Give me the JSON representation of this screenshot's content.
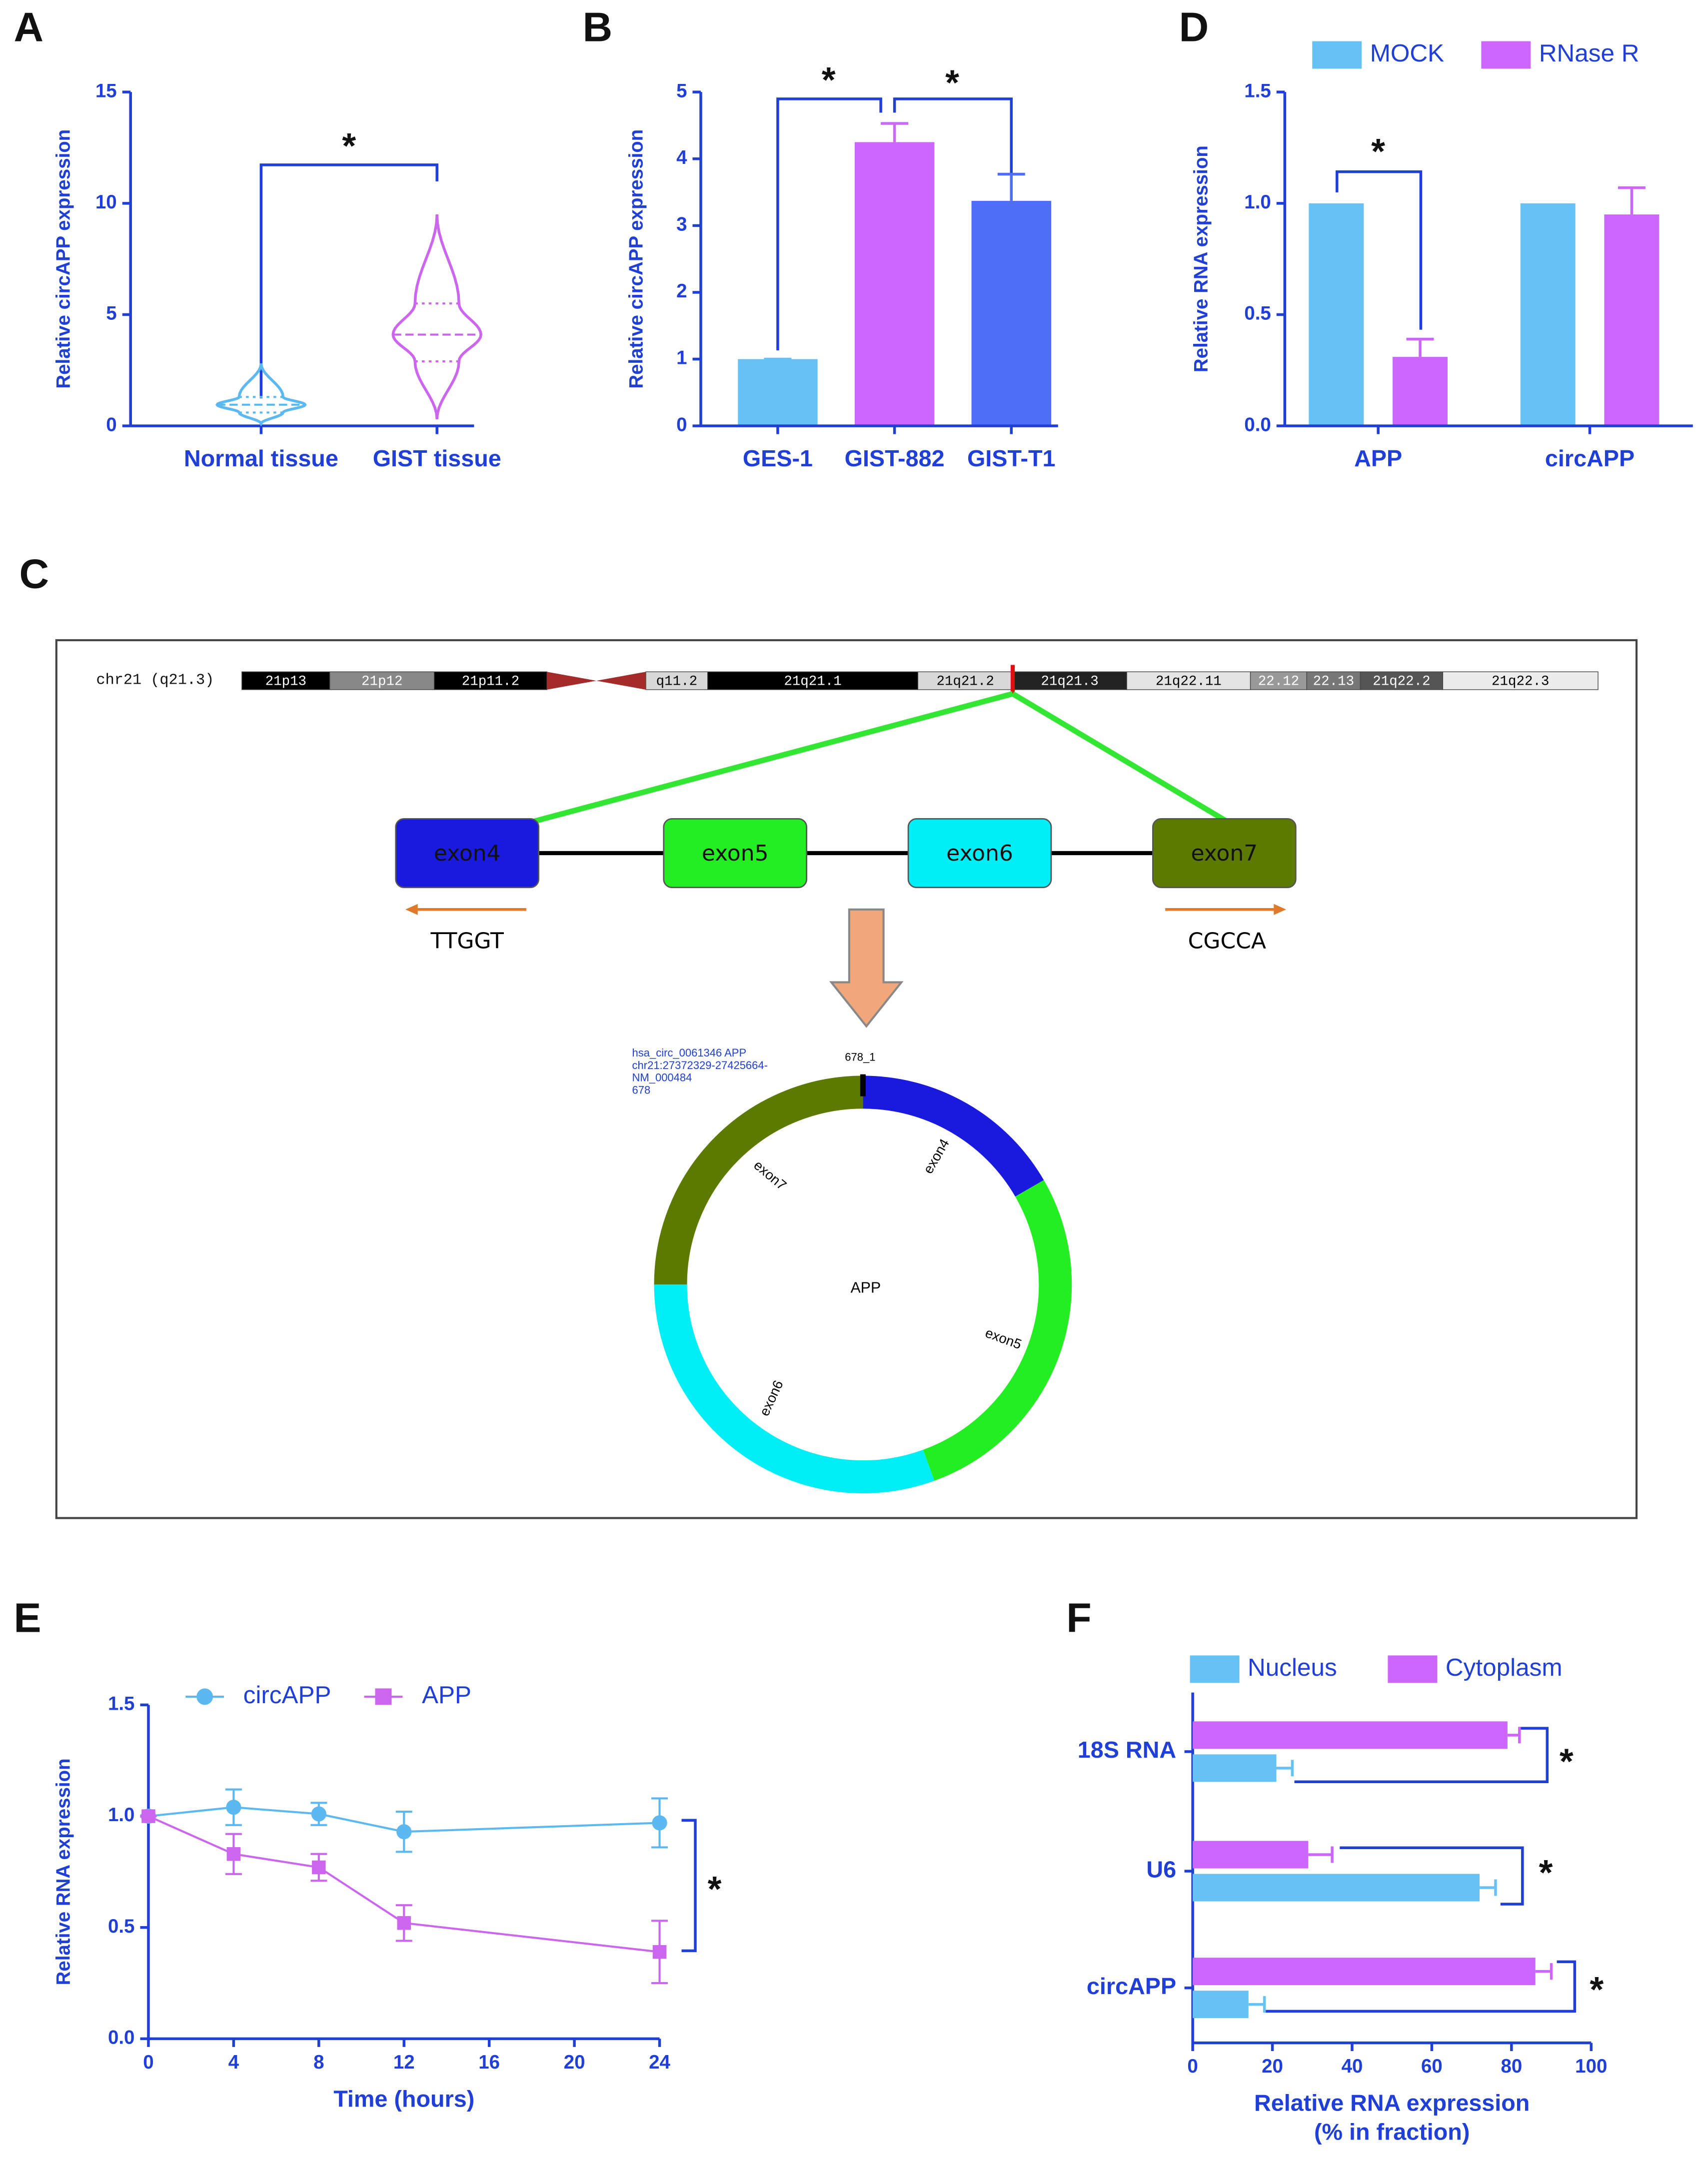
{
  "chart_data": [
    {
      "panel": "A",
      "type": "violin",
      "ylabel": "Relative circAPP expression",
      "categories": [
        "Normal tissue",
        "GIST tissue"
      ],
      "colors": [
        "#5cb8f0",
        "#cc66ee"
      ],
      "min": [
        0.1,
        0.3
      ],
      "q1": [
        0.6,
        2.9
      ],
      "median": [
        0.95,
        4.1
      ],
      "q3": [
        1.3,
        5.5
      ],
      "max": [
        2.8,
        9.5
      ],
      "ylim": [
        0,
        15
      ],
      "yticks": [
        0,
        5,
        10,
        15
      ],
      "annotations": [
        "*"
      ]
    },
    {
      "panel": "B",
      "type": "bar",
      "ylabel": "Relative circAPP expression",
      "categories": [
        "GES-1",
        "GIST-882",
        "GIST-T1"
      ],
      "values": [
        1,
        4.25,
        3.37
      ],
      "errors": [
        0,
        0.28,
        0.4
      ],
      "colors": [
        "#66c2f5",
        "#cc66ff",
        "#4f6ef7"
      ],
      "ylim": [
        0,
        5
      ],
      "yticks": [
        0,
        1,
        2,
        3,
        4,
        5
      ],
      "annotations": [
        "*",
        "*"
      ]
    },
    {
      "panel": "D",
      "type": "grouped_bar",
      "ylabel": "Relative RNA expression",
      "categories": [
        "APP",
        "circAPP"
      ],
      "series": [
        {
          "name": "MOCK",
          "color": "#66c2f5",
          "values": [
            1,
            1
          ]
        },
        {
          "name": "RNase R",
          "color": "#cc66ff",
          "values": [
            0.31,
            0.95
          ],
          "errors": [
            0.08,
            0.12
          ]
        }
      ],
      "ylim": [
        0,
        1.5
      ],
      "yticks": [
        {
          "value": 0,
          "label": "0.0"
        },
        0.5,
        {
          "value": 1,
          "label": "1.0"
        },
        1.5
      ],
      "annotations": [
        "*"
      ]
    },
    {
      "panel": "E",
      "type": "line",
      "ylabel": "Relative RNA expression",
      "xlabel": "Time (hours)",
      "x": [
        0,
        4,
        8,
        12,
        24
      ],
      "series": [
        {
          "name": "circAPP",
          "color": "#5cb8f0",
          "marker": "circle",
          "values": [
            1,
            1.04,
            1.01,
            0.93,
            0.97
          ],
          "errors": [
            0,
            0.08,
            0.05,
            0.09,
            0.11
          ]
        },
        {
          "name": "APP",
          "color": "#cc66ee",
          "marker": "square",
          "values": [
            1,
            0.83,
            0.77,
            0.52,
            0.39
          ],
          "errors": [
            0,
            0.09,
            0.06,
            0.08,
            0.14
          ]
        }
      ],
      "xlim": [
        0,
        24
      ],
      "xticks": [
        0,
        4,
        8,
        12,
        16,
        20,
        24
      ],
      "ylim": [
        0,
        1.5
      ],
      "yticks": [
        {
          "value": 0,
          "label": "0.0"
        },
        0.5,
        {
          "value": 1,
          "label": "1.0"
        },
        1.5
      ],
      "annotations": [
        "*"
      ]
    },
    {
      "panel": "F",
      "type": "hbar",
      "xlabel": [
        "Relative RNA expression",
        "(% in fraction)"
      ],
      "categories": [
        "18S RNA",
        "U6",
        "circAPP"
      ],
      "series": [
        {
          "name": "Nucleus",
          "color": "#66c2f5",
          "values": [
            21,
            72,
            14
          ],
          "errors": [
            4,
            4,
            4
          ]
        },
        {
          "name": "Cytoplasm",
          "color": "#cc66ff",
          "values": [
            79,
            29,
            86
          ],
          "errors": [
            3,
            6,
            4
          ]
        }
      ],
      "xlim": [
        0,
        100
      ],
      "xticks": [
        0,
        20,
        40,
        60,
        80,
        100
      ],
      "annotations": [
        "*",
        "*",
        "*"
      ]
    }
  ],
  "diagram": {
    "panel": "C",
    "chromosome": "chr21 (q21.3)",
    "bands": [
      "21p13",
      "21p12",
      "21p11.2",
      "q11.2",
      "21q21.1",
      "21q21.2",
      "21q21.3",
      "21q22.11",
      "22.12",
      "22.13",
      "21q22.2",
      "21q22.3"
    ],
    "exons": [
      "exon4",
      "exon5",
      "exon6",
      "exon7"
    ],
    "primers": [
      "TTGGT",
      "CGCCA"
    ],
    "circle": {
      "info": [
        "hsa_circ_0061346 APP",
        "chr21:27372329-27425664-",
        "NM_000484",
        "678"
      ],
      "start": "678_1",
      "gene": "APP",
      "exons": [
        "exon4",
        "exon5",
        "exon6",
        "exon7"
      ]
    }
  }
}
